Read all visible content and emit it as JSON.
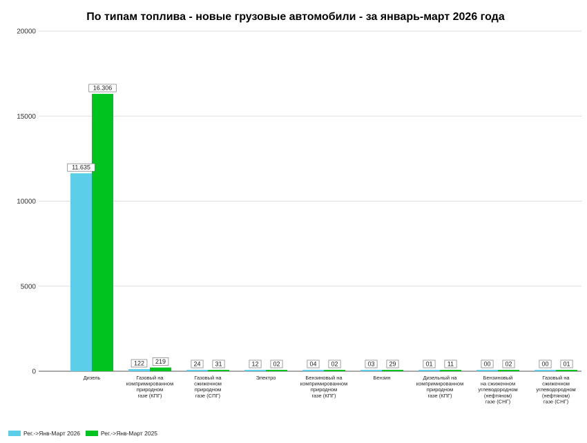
{
  "chart_data": {
    "type": "bar",
    "title": "По типам топлива - новые грузовые автомобили - за январь-март 2026 года",
    "xlabel": "",
    "ylabel": "",
    "ylim": [
      0,
      20000
    ],
    "yticks": [
      "0",
      "5000",
      "10000",
      "15000",
      "20000"
    ],
    "grid": true,
    "legend_position": "bottom-left",
    "categories": [
      [
        "Дизель"
      ],
      [
        "Газовый на",
        "компримированном",
        "природном",
        "газе (КПГ)"
      ],
      [
        "Газовый на",
        "сжиженном",
        "природном",
        "газе (СПГ)"
      ],
      [
        "Электро"
      ],
      [
        "Бензиновый на",
        "компримированном",
        "природном",
        "газе (КПГ)"
      ],
      [
        "Бензин"
      ],
      [
        "Дизельный на",
        "компримированном",
        "природном",
        "газе (КПГ)"
      ],
      [
        "Бензиновый",
        "на сжиженном",
        "углеводородном",
        "(нефтяном)",
        "газе (СНГ)"
      ],
      [
        "Газовый на",
        "сжиженном",
        "углеводородном",
        "(нефтяном)",
        "газе (СНГ)"
      ]
    ],
    "series": [
      {
        "name": "Рег.->Янв-Март 2026",
        "color": "#5bcfe8",
        "values": [
          11635,
          122,
          24,
          12,
          4,
          3,
          1,
          0,
          0
        ],
        "labels": [
          "11.635",
          "122",
          "24",
          "12",
          "04",
          "03",
          "01",
          "00",
          "00"
        ]
      },
      {
        "name": "Рег.->Янв-Март 2025",
        "color": "#00c41e",
        "values": [
          16306,
          219,
          31,
          2,
          2,
          29,
          11,
          2,
          1
        ],
        "labels": [
          "16.306",
          "219",
          "31",
          "02",
          "02",
          "29",
          "11",
          "02",
          "01"
        ]
      }
    ]
  }
}
